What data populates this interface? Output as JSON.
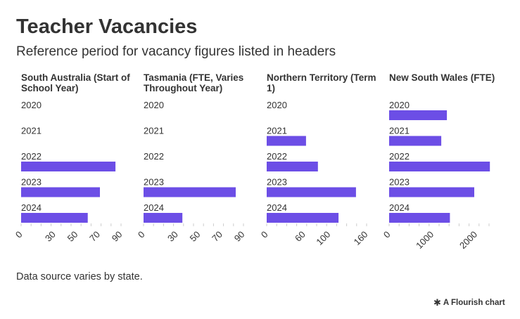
{
  "header": {
    "title": "Teacher Vacancies",
    "subtitle": "Reference period for vacancy figures listed in headers"
  },
  "footer": {
    "source": "Data source varies by state.",
    "credit": "A Flourish chart",
    "credit_icon": "flourish-logo-icon"
  },
  "colors": {
    "bar": "#6c4ee6",
    "tick": "#cccccc",
    "text": "#333333"
  },
  "chart_data": [
    {
      "type": "bar",
      "orientation": "horizontal",
      "title": "South Australia (Start of School Year)",
      "categories": [
        "2020",
        "2021",
        "2022",
        "2023",
        "2024"
      ],
      "values": [
        null,
        null,
        85,
        71,
        60
      ],
      "xlim": [
        0,
        90
      ],
      "x_ticks": [
        0,
        30,
        50,
        70,
        90
      ],
      "x_tick_labels": [
        "0",
        "30",
        "50",
        "70",
        "90"
      ]
    },
    {
      "type": "bar",
      "orientation": "horizontal",
      "title": "Tasmania (FTE, Varies Throughout Year)",
      "categories": [
        "2020",
        "2021",
        "2022",
        "2023",
        "2024"
      ],
      "values": [
        null,
        null,
        null,
        83,
        35
      ],
      "xlim": [
        0,
        90
      ],
      "x_ticks": [
        0,
        30,
        50,
        70,
        90
      ],
      "x_tick_labels": [
        "0",
        "30",
        "50",
        "70",
        "90"
      ]
    },
    {
      "type": "bar",
      "orientation": "horizontal",
      "title": "Northern Territory (Term 1)",
      "categories": [
        "2020",
        "2021",
        "2022",
        "2023",
        "2024"
      ],
      "values": [
        null,
        63,
        82,
        143,
        115
      ],
      "xlim": [
        0,
        160
      ],
      "x_ticks": [
        0,
        60,
        100,
        160
      ],
      "x_tick_labels": [
        "0",
        "60",
        "100",
        "160"
      ]
    },
    {
      "type": "bar",
      "orientation": "horizontal",
      "title": "New South Wales (FTE)",
      "categories": [
        "2020",
        "2021",
        "2022",
        "2023",
        "2024"
      ],
      "values": [
        1330,
        1200,
        2320,
        1960,
        1400
      ],
      "xlim": [
        0,
        2300
      ],
      "x_ticks": [
        0,
        1000,
        2000
      ],
      "x_tick_labels": [
        "0",
        "1000",
        "2000"
      ]
    }
  ]
}
